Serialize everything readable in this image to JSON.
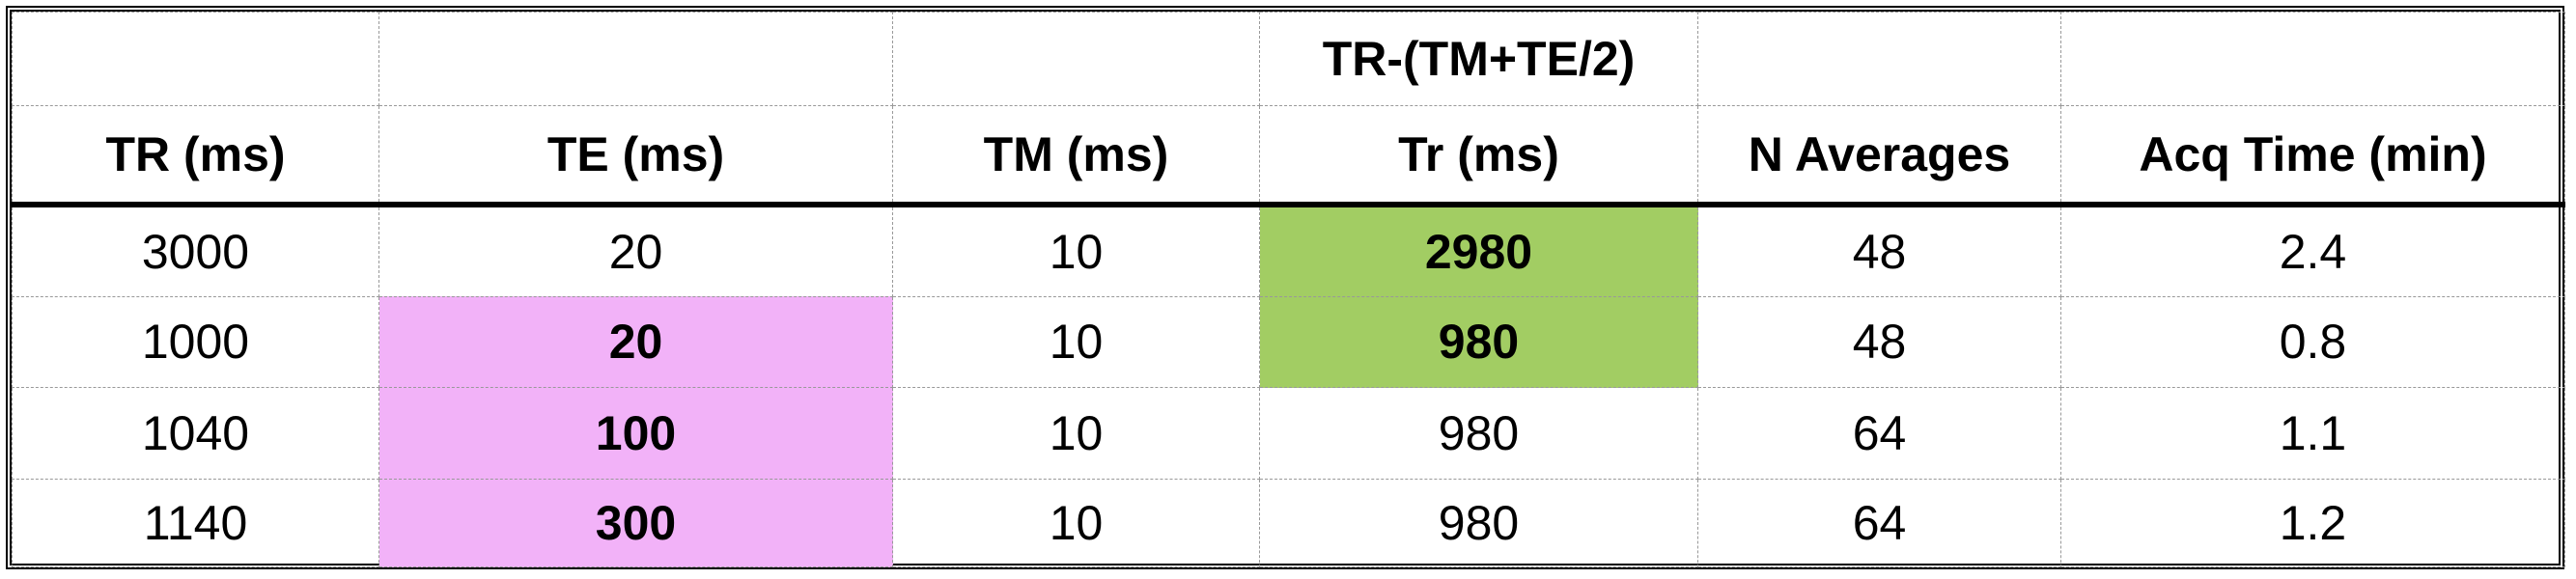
{
  "table": {
    "super_header": [
      "",
      "",
      "",
      "TR-(TM+TE/2)",
      "",
      ""
    ],
    "headers": [
      "TR (ms)",
      "TE (ms)",
      "TM (ms)",
      "Tr (ms)",
      "N Averages",
      "Acq Time (min)"
    ],
    "rows": [
      [
        "3000",
        "20",
        "10",
        "2980",
        "48",
        "2.4"
      ],
      [
        "1000",
        "20",
        "10",
        "980",
        "48",
        "0.8"
      ],
      [
        "1040",
        "100",
        "10",
        "980",
        "64",
        "1.1"
      ],
      [
        "1140",
        "300",
        "10",
        "980",
        "64",
        "1.2"
      ]
    ]
  },
  "highlight_colors": {
    "te_highlight": "#f2b2f8",
    "tr_highlight": "#a2cd63"
  }
}
